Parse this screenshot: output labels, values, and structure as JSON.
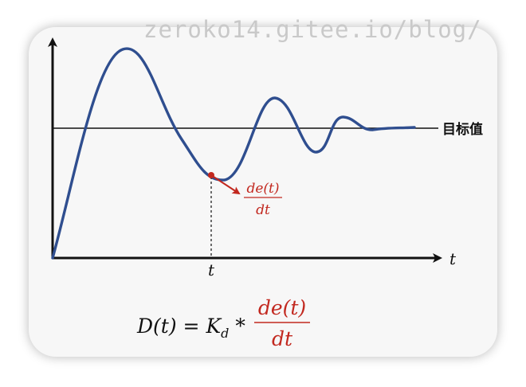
{
  "watermark": "zeroko14.gitee.io/blog/",
  "diagram": {
    "target_label": "目标值",
    "x_axis_label": "t",
    "time_marker_label": "t",
    "derivative_numerator": "de(t)",
    "derivative_denominator": "dt",
    "formula": {
      "lhs": "D(t) = K",
      "subscript": "d",
      "operator": " *",
      "numerator": "de(t)",
      "denominator": "dt"
    }
  },
  "colors": {
    "curve": "#2f4e8f",
    "derivative": "#c2281f",
    "axis": "#111111",
    "card_background": "#f7f7f7",
    "watermark": "#c9c9c9"
  }
}
